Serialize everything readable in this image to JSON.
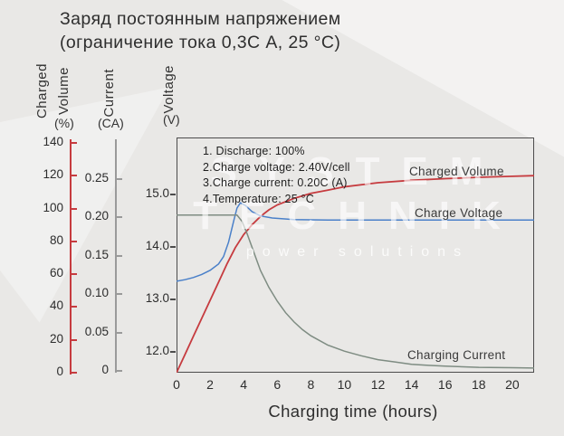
{
  "title": {
    "line1": "Заряд постоянным напряжением",
    "line2": "(ограничение тока 0,3С А, 25 °C)"
  },
  "watermark": {
    "line1": "SYSTEM",
    "line2": "TECHNIK",
    "line3": "power solutions"
  },
  "axes": {
    "charged_volume": {
      "word1": "Charged",
      "word2": "Volume",
      "unit": "(%)",
      "color": "#c63b3f",
      "ticks": [
        "140",
        "120",
        "100",
        "80",
        "60",
        "40",
        "20",
        "0"
      ]
    },
    "current": {
      "word": "Current",
      "unit": "(CA)",
      "color": "#9a9a9a",
      "ticks": [
        "0.25",
        "0.20",
        "0.15",
        "0.10",
        "0.05",
        "0"
      ]
    },
    "voltage": {
      "word": "Voltage",
      "unit": "(V)",
      "color": "#4c4c4c",
      "ticks": [
        "15.0",
        "14.0",
        "13.0",
        "12.0"
      ]
    },
    "x": {
      "label": "Charging time (hours)",
      "ticks": [
        "0",
        "2",
        "4",
        "6",
        "8",
        "10",
        "12",
        "14",
        "16",
        "18",
        "20"
      ]
    }
  },
  "annotation": {
    "lines": [
      "1. Discharge: 100%",
      "2.Charge voltage: 2.40V/cell",
      "3.Charge current: 0.20C (A)",
      "4.Temperature: 25 °C"
    ]
  },
  "curve_labels": {
    "charged_volume": "Charged Volume",
    "charge_voltage": "Charge Voltage",
    "charging_current": "Charging Current"
  },
  "chart_data": {
    "type": "line",
    "title": "Заряд постоянным напряжением (ограничение тока 0,3С А, 25 °C)",
    "xlabel": "Charging time (hours)",
    "xlim": [
      0,
      21.3
    ],
    "x_ticks": [
      0,
      2,
      4,
      6,
      8,
      10,
      12,
      14,
      16,
      18,
      20
    ],
    "grid": false,
    "legend_position": "inline-labels",
    "y_axes": [
      {
        "label": "Charged Volume (%)",
        "range": [
          0,
          140
        ],
        "ticks": [
          0,
          20,
          40,
          60,
          80,
          100,
          120,
          140
        ]
      },
      {
        "label": "Current (CA)",
        "range": [
          0,
          0.25
        ],
        "ticks": [
          0,
          0.05,
          0.1,
          0.15,
          0.2,
          0.25
        ]
      },
      {
        "label": "Voltage (V)",
        "range": [
          12,
          15
        ],
        "ticks": [
          12,
          13,
          14,
          15
        ]
      }
    ],
    "series": [
      {
        "name": "Charged Volume",
        "axis": "percent",
        "color": "#c63b3f",
        "ylim_plot": [
          0,
          143
        ],
        "points": [
          [
            0,
            0
          ],
          [
            0.5,
            11
          ],
          [
            1,
            22
          ],
          [
            1.5,
            33
          ],
          [
            2,
            44
          ],
          [
            2.5,
            55
          ],
          [
            3,
            66
          ],
          [
            3.5,
            76
          ],
          [
            4,
            84
          ],
          [
            4.5,
            90
          ],
          [
            5,
            95
          ],
          [
            5.5,
            99
          ],
          [
            6,
            102
          ],
          [
            7,
            106
          ],
          [
            8,
            109
          ],
          [
            9,
            111
          ],
          [
            10,
            113
          ],
          [
            12,
            115.5
          ],
          [
            14,
            117
          ],
          [
            16,
            118
          ],
          [
            18,
            118.8
          ],
          [
            20,
            119.4
          ],
          [
            21.3,
            119.8
          ]
        ]
      },
      {
        "name": "Charge Voltage",
        "axis": "voltage",
        "color": "#4a80c9",
        "ylim_plot": [
          11.6,
          16.1
        ],
        "points": [
          [
            0,
            13.35
          ],
          [
            0.5,
            13.38
          ],
          [
            1,
            13.42
          ],
          [
            1.5,
            13.48
          ],
          [
            2,
            13.56
          ],
          [
            2.5,
            13.68
          ],
          [
            2.8,
            13.82
          ],
          [
            3.1,
            14.1
          ],
          [
            3.4,
            14.5
          ],
          [
            3.6,
            14.75
          ],
          [
            3.8,
            14.85
          ],
          [
            4.1,
            14.8
          ],
          [
            4.5,
            14.68
          ],
          [
            5,
            14.6
          ],
          [
            5.7,
            14.56
          ],
          [
            7,
            14.53
          ],
          [
            9,
            14.52
          ],
          [
            21.3,
            14.52
          ]
        ]
      },
      {
        "name": "Charging Current",
        "axis": "current",
        "color": "#7e8c82",
        "ylim_plot": [
          0,
          0.306
        ],
        "points": [
          [
            0,
            0.205
          ],
          [
            3.6,
            0.205
          ],
          [
            3.9,
            0.197
          ],
          [
            4.2,
            0.181
          ],
          [
            4.6,
            0.157
          ],
          [
            5,
            0.133
          ],
          [
            5.5,
            0.111
          ],
          [
            6,
            0.093
          ],
          [
            6.5,
            0.078
          ],
          [
            7,
            0.066
          ],
          [
            7.5,
            0.056
          ],
          [
            8,
            0.048
          ],
          [
            9,
            0.036
          ],
          [
            10,
            0.028
          ],
          [
            11,
            0.022
          ],
          [
            12,
            0.017
          ],
          [
            13,
            0.014
          ],
          [
            14,
            0.011
          ],
          [
            15,
            0.0095
          ],
          [
            16,
            0.0085
          ],
          [
            18,
            0.007
          ],
          [
            20,
            0.0065
          ],
          [
            21.3,
            0.006
          ]
        ]
      }
    ]
  }
}
